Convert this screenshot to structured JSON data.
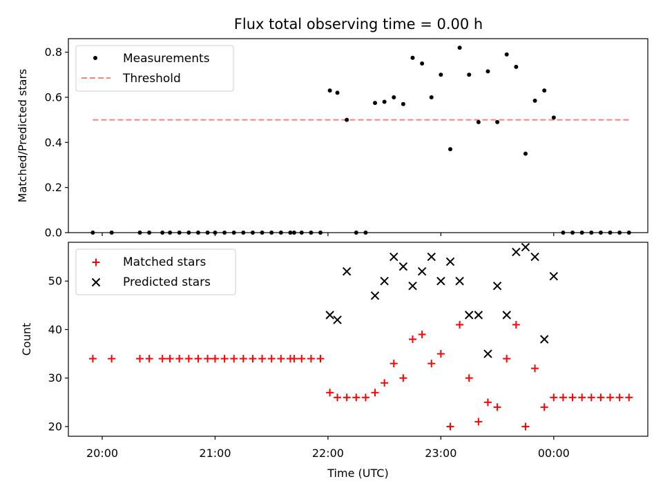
{
  "chart_data": [
    {
      "type": "scatter",
      "title": "Flux total observing time = 0.00 h",
      "xlabel": "",
      "ylabel": "Matched/Predicted stars",
      "ylim": [
        0,
        0.86
      ],
      "yticks": [
        "0.0",
        "0.2",
        "0.4",
        "0.6",
        "0.8"
      ],
      "grid": false,
      "legend_position": "top-left",
      "colors": {
        "measurements": "#000000",
        "threshold": "#ff7f7f"
      },
      "threshold": {
        "name": "Threshold",
        "value": 0.5,
        "x_range": [
          "19:55",
          "00:40"
        ]
      },
      "series": [
        {
          "name": "Measurements",
          "points": [
            [
              "19:55",
              0.0
            ],
            [
              "20:05",
              0.0
            ],
            [
              "20:20",
              0.0
            ],
            [
              "20:25",
              0.0
            ],
            [
              "20:32",
              0.0
            ],
            [
              "20:36",
              0.0
            ],
            [
              "20:41",
              0.0
            ],
            [
              "20:46",
              0.0
            ],
            [
              "20:51",
              0.0
            ],
            [
              "20:56",
              0.0
            ],
            [
              "21:00",
              0.0
            ],
            [
              "21:05",
              0.0
            ],
            [
              "21:10",
              0.0
            ],
            [
              "21:15",
              0.0
            ],
            [
              "21:20",
              0.0
            ],
            [
              "21:25",
              0.0
            ],
            [
              "21:30",
              0.0
            ],
            [
              "21:35",
              0.0
            ],
            [
              "21:40",
              0.0
            ],
            [
              "21:42",
              0.0
            ],
            [
              "21:46",
              0.0
            ],
            [
              "21:51",
              0.0
            ],
            [
              "21:56",
              0.0
            ],
            [
              "22:01",
              0.63
            ],
            [
              "22:05",
              0.62
            ],
            [
              "22:10",
              0.5
            ],
            [
              "22:15",
              0.0
            ],
            [
              "22:20",
              0.0
            ],
            [
              "22:25",
              0.575
            ],
            [
              "22:30",
              0.58
            ],
            [
              "22:35",
              0.6
            ],
            [
              "22:40",
              0.57
            ],
            [
              "22:45",
              0.775
            ],
            [
              "22:50",
              0.75
            ],
            [
              "22:55",
              0.6
            ],
            [
              "23:00",
              0.7
            ],
            [
              "23:05",
              0.37
            ],
            [
              "23:10",
              0.82
            ],
            [
              "23:15",
              0.7
            ],
            [
              "23:20",
              0.49
            ],
            [
              "23:25",
              0.715
            ],
            [
              "23:30",
              0.49
            ],
            [
              "23:35",
              0.79
            ],
            [
              "23:40",
              0.735
            ],
            [
              "23:45",
              0.35
            ],
            [
              "23:50",
              0.585
            ],
            [
              "23:55",
              0.63
            ],
            [
              "00:00",
              0.51
            ],
            [
              "00:05",
              0.0
            ],
            [
              "00:10",
              0.0
            ],
            [
              "00:15",
              0.0
            ],
            [
              "00:20",
              0.0
            ],
            [
              "00:25",
              0.0
            ],
            [
              "00:30",
              0.0
            ],
            [
              "00:35",
              0.0
            ],
            [
              "00:40",
              0.0
            ]
          ]
        }
      ]
    },
    {
      "type": "scatter",
      "title": "",
      "xlabel": "Time (UTC)",
      "ylabel": "Count",
      "ylim": [
        18,
        58
      ],
      "yticks": [
        "20",
        "30",
        "40",
        "50"
      ],
      "xlim": [
        "19:42",
        "00:50"
      ],
      "xticks": [
        "20:00",
        "21:00",
        "22:00",
        "23:00",
        "00:00"
      ],
      "grid": false,
      "legend_position": "top-left",
      "colors": {
        "matched": "#ff0000",
        "predicted": "#000000"
      },
      "series": [
        {
          "name": "Matched stars",
          "marker": "+",
          "points": [
            [
              "19:55",
              34
            ],
            [
              "20:05",
              34
            ],
            [
              "20:20",
              34
            ],
            [
              "20:25",
              34
            ],
            [
              "20:32",
              34
            ],
            [
              "20:36",
              34
            ],
            [
              "20:41",
              34
            ],
            [
              "20:46",
              34
            ],
            [
              "20:51",
              34
            ],
            [
              "20:56",
              34
            ],
            [
              "21:00",
              34
            ],
            [
              "21:05",
              34
            ],
            [
              "21:10",
              34
            ],
            [
              "21:15",
              34
            ],
            [
              "21:20",
              34
            ],
            [
              "21:25",
              34
            ],
            [
              "21:30",
              34
            ],
            [
              "21:35",
              34
            ],
            [
              "21:40",
              34
            ],
            [
              "21:42",
              34
            ],
            [
              "21:46",
              34
            ],
            [
              "21:51",
              34
            ],
            [
              "21:56",
              34
            ],
            [
              "22:01",
              27
            ],
            [
              "22:05",
              26
            ],
            [
              "22:10",
              26
            ],
            [
              "22:15",
              26
            ],
            [
              "22:20",
              26
            ],
            [
              "22:25",
              27
            ],
            [
              "22:30",
              29
            ],
            [
              "22:35",
              33
            ],
            [
              "22:40",
              30
            ],
            [
              "22:45",
              38
            ],
            [
              "22:50",
              39
            ],
            [
              "22:55",
              33
            ],
            [
              "23:00",
              35
            ],
            [
              "23:05",
              20
            ],
            [
              "23:10",
              41
            ],
            [
              "23:15",
              30
            ],
            [
              "23:20",
              21
            ],
            [
              "23:25",
              25
            ],
            [
              "23:30",
              24
            ],
            [
              "23:35",
              34
            ],
            [
              "23:40",
              41
            ],
            [
              "23:45",
              20
            ],
            [
              "23:50",
              32
            ],
            [
              "23:55",
              24
            ],
            [
              "00:00",
              26
            ],
            [
              "00:05",
              26
            ],
            [
              "00:10",
              26
            ],
            [
              "00:15",
              26
            ],
            [
              "00:20",
              26
            ],
            [
              "00:25",
              26
            ],
            [
              "00:30",
              26
            ],
            [
              "00:35",
              26
            ],
            [
              "00:40",
              26
            ]
          ]
        },
        {
          "name": "Predicted stars",
          "marker": "x",
          "points": [
            [
              "22:01",
              43
            ],
            [
              "22:05",
              42
            ],
            [
              "22:10",
              52
            ],
            [
              "22:25",
              47
            ],
            [
              "22:30",
              50
            ],
            [
              "22:35",
              55
            ],
            [
              "22:40",
              53
            ],
            [
              "22:45",
              49
            ],
            [
              "22:50",
              52
            ],
            [
              "22:55",
              55
            ],
            [
              "23:00",
              50
            ],
            [
              "23:05",
              54
            ],
            [
              "23:10",
              50
            ],
            [
              "23:15",
              43
            ],
            [
              "23:20",
              43
            ],
            [
              "23:25",
              35
            ],
            [
              "23:30",
              49
            ],
            [
              "23:35",
              43
            ],
            [
              "23:40",
              56
            ],
            [
              "23:45",
              57
            ],
            [
              "23:50",
              55
            ],
            [
              "23:55",
              38
            ],
            [
              "00:00",
              51
            ]
          ]
        }
      ]
    }
  ]
}
